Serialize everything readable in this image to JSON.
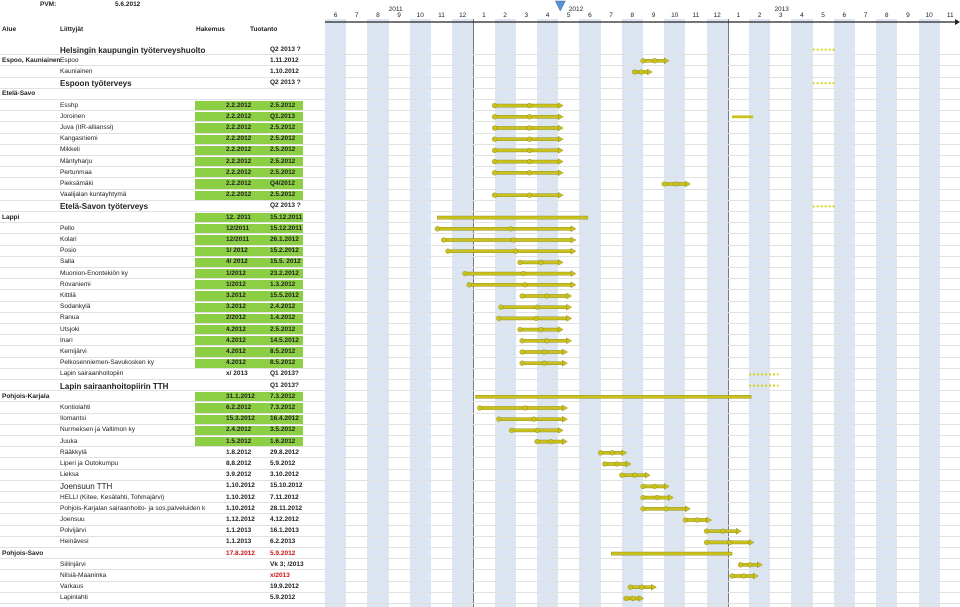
{
  "header": {
    "pvm_label": "PVM:",
    "pvm_value": "5.6.2012",
    "columns": {
      "alue": "Alue",
      "liittyjat": "Liittyjät",
      "hakemus": "Hakemus",
      "tuotanto": "Tuotanto"
    }
  },
  "timeline": {
    "years": [
      "2011",
      "2012",
      "2013"
    ],
    "months": [
      "6",
      "7",
      "8",
      "9",
      "10",
      "11",
      "12",
      "1",
      "2",
      "3",
      "4",
      "5",
      "6",
      "7",
      "8",
      "9",
      "10",
      "11",
      "12",
      "1",
      "2",
      "3",
      "4",
      "5",
      "6",
      "7",
      "8",
      "9",
      "10",
      "11",
      "12"
    ],
    "today_marker": "today-triangle-5.6.2012"
  },
  "colors": {
    "green_cell": "#8ccf44",
    "bar": "#c9c21e",
    "bar_edge": "#8a8416",
    "stripe": "#dce6f3",
    "planned": "#d8d21c",
    "late_red": "#cc1111"
  },
  "rows": [
    {
      "area": "",
      "name": "Helsingin kaupungin työterveyshuolto",
      "hakemus": "",
      "tuotanto": "Q2 2013 ?",
      "name_style": "big",
      "green": false,
      "bar": {
        "type": "dashed",
        "from": 23.0,
        "to": 24.1
      }
    },
    {
      "area": "Espoo, Kauniainen",
      "name": "Espoo",
      "hakemus": "",
      "tuotanto": "1.11.2012",
      "green": false,
      "bar": {
        "type": "solid",
        "from": 15.0,
        "to": 16.0
      }
    },
    {
      "area": "",
      "name": "Kauniainen",
      "hakemus": "",
      "tuotanto": "1.10.2012",
      "green": false,
      "bar": {
        "type": "solid",
        "from": 14.6,
        "to": 15.2
      }
    },
    {
      "area": "",
      "name": "Espoon työterveys",
      "hakemus": "",
      "tuotanto": "Q2 2013 ?",
      "name_style": "big",
      "green": false,
      "bar": {
        "type": "dashed",
        "from": 23.0,
        "to": 24.1
      }
    },
    {
      "area": "Etelä-Savo",
      "name": "",
      "hakemus": "",
      "tuotanto": "",
      "green": false,
      "bar": null
    },
    {
      "area": "",
      "name": "Esshp",
      "hakemus": "2.2.2012",
      "tuotanto": "2.5.2012",
      "green": true,
      "bar": {
        "type": "solid",
        "from": 8.0,
        "to": 11.0
      }
    },
    {
      "area": "",
      "name": "Joroinen",
      "hakemus": "2.2.2012",
      "tuotanto": "Q1.2013",
      "green": true,
      "bar": {
        "type": "solid",
        "from": 8.0,
        "to": 11.0,
        "extra": [
          19.2,
          20.2
        ]
      }
    },
    {
      "area": "",
      "name": "Juva (IIR-allianssi)",
      "hakemus": "2.2.2012",
      "tuotanto": "2.5.2012",
      "green": true,
      "bar": {
        "type": "solid",
        "from": 8.0,
        "to": 11.0
      }
    },
    {
      "area": "",
      "name": "Kangasniemi",
      "hakemus": "2.2.2012",
      "tuotanto": "2.5.2012",
      "green": true,
      "bar": {
        "type": "solid",
        "from": 8.0,
        "to": 11.0
      }
    },
    {
      "area": "",
      "name": "Mikkeli",
      "hakemus": "2.2.2012",
      "tuotanto": "2.5.2012",
      "green": true,
      "bar": {
        "type": "solid",
        "from": 8.0,
        "to": 11.0
      }
    },
    {
      "area": "",
      "name": "Mäntyharju",
      "hakemus": "2.2.2012",
      "tuotanto": "2.5.2012",
      "green": true,
      "bar": {
        "type": "solid",
        "from": 8.0,
        "to": 11.0
      }
    },
    {
      "area": "",
      "name": "Pertunmaa",
      "hakemus": "2.2.2012",
      "tuotanto": "2.5.2012",
      "green": true,
      "bar": {
        "type": "solid",
        "from": 8.0,
        "to": 11.0
      }
    },
    {
      "area": "",
      "name": "Pieksämäki",
      "hakemus": "2.2.2012",
      "tuotanto": "Q4/2012",
      "green": true,
      "bar": {
        "type": "solid",
        "from": 16.0,
        "to": 17.0
      }
    },
    {
      "area": "",
      "name": "Vaalijalan kuntayhtymä",
      "hakemus": "2.2.2012",
      "tuotanto": "2.5.2012",
      "green": true,
      "bar": {
        "type": "solid",
        "from": 8.0,
        "to": 11.0
      }
    },
    {
      "area": "",
      "name": "Etelä-Savon työterveys",
      "hakemus": "",
      "tuotanto": "Q2 2013 ?",
      "name_style": "big",
      "green": false,
      "bar": {
        "type": "dashed",
        "from": 23.0,
        "to": 24.1
      }
    },
    {
      "area": "Lappi",
      "name": "",
      "hakemus": "12. 2011",
      "tuotanto": "15.12.2011",
      "green": true,
      "bar": {
        "type": "plain",
        "from": 5.3,
        "to": 12.4
      }
    },
    {
      "area": "",
      "name": "Pello",
      "hakemus": "12/2011",
      "tuotanto": "15.12.2011",
      "green": true,
      "bar": {
        "type": "solid",
        "from": 5.3,
        "to": 11.6
      }
    },
    {
      "area": "",
      "name": "Kolari",
      "hakemus": "12/2011",
      "tuotanto": "26.1.2012",
      "green": true,
      "bar": {
        "type": "solid",
        "from": 5.6,
        "to": 11.6
      }
    },
    {
      "area": "",
      "name": "Posio",
      "hakemus": "1/ 2012",
      "tuotanto": "15.2.2012",
      "green": true,
      "bar": {
        "type": "solid",
        "from": 5.8,
        "to": 11.6
      }
    },
    {
      "area": "",
      "name": "Salla",
      "hakemus": "4/ 2012",
      "tuotanto": "15.5. 2012",
      "green": true,
      "bar": {
        "type": "solid",
        "from": 9.2,
        "to": 11.0
      }
    },
    {
      "area": "",
      "name": "Muonion-Enontekiön ky",
      "hakemus": "1/2012",
      "tuotanto": "23.2.2012",
      "green": true,
      "bar": {
        "type": "solid",
        "from": 6.6,
        "to": 11.6
      }
    },
    {
      "area": "",
      "name": "Rovaniemi",
      "hakemus": "1/2012",
      "tuotanto": "1.3.2012",
      "green": true,
      "bar": {
        "type": "solid",
        "from": 6.8,
        "to": 11.6
      }
    },
    {
      "area": "",
      "name": "Kittilä",
      "hakemus": "3.2012",
      "tuotanto": "15.5.2012",
      "green": true,
      "bar": {
        "type": "solid",
        "from": 9.3,
        "to": 11.4
      }
    },
    {
      "area": "",
      "name": "Sodankylä",
      "hakemus": "3.2012",
      "tuotanto": "2.4.2012",
      "green": true,
      "bar": {
        "type": "solid",
        "from": 8.3,
        "to": 11.4
      }
    },
    {
      "area": "",
      "name": "Ranua",
      "hakemus": "2/2012",
      "tuotanto": "1.4.2012",
      "green": true,
      "bar": {
        "type": "solid",
        "from": 8.2,
        "to": 11.4
      }
    },
    {
      "area": "",
      "name": "Utsjoki",
      "hakemus": "4.2012",
      "tuotanto": "2.5.2012",
      "green": true,
      "bar": {
        "type": "solid",
        "from": 9.2,
        "to": 11.0
      }
    },
    {
      "area": "",
      "name": "Inari",
      "hakemus": "4.2012",
      "tuotanto": "14.5.2012",
      "green": true,
      "bar": {
        "type": "solid",
        "from": 9.3,
        "to": 11.4
      }
    },
    {
      "area": "",
      "name": "Kemijärvi",
      "hakemus": "4.2012",
      "tuotanto": "8.5.2012",
      "green": true,
      "bar": {
        "type": "solid",
        "from": 9.3,
        "to": 11.2
      }
    },
    {
      "area": "",
      "name": "Pelkosenniemen-Savukosken ky",
      "hakemus": "4.2012",
      "tuotanto": "8.5.2012",
      "green": true,
      "bar": {
        "type": "solid",
        "from": 9.3,
        "to": 11.2
      }
    },
    {
      "area": "",
      "name": "Lapin sairaanhoitopiiri",
      "hakemus": "x/ 2013",
      "tuotanto": "Q1 2013?",
      "green": false,
      "bar": {
        "type": "dashed",
        "from": 20.0,
        "to": 21.4
      }
    },
    {
      "area": "",
      "name": "Lapin sairaanhoitopiirin TTH",
      "hakemus": "",
      "tuotanto": "Q1 2013?",
      "name_style": "big",
      "green": false,
      "bar": {
        "type": "dashed",
        "from": 20.0,
        "to": 21.4
      }
    },
    {
      "area": "Pohjois-Karjala",
      "name": "",
      "hakemus": "31.1.2012",
      "tuotanto": "7.3.2012",
      "green": true,
      "bar": {
        "type": "plain",
        "from": 7.1,
        "to": 20.1
      }
    },
    {
      "area": "",
      "name": "Kontiolahti",
      "hakemus": "6.2.2012",
      "tuotanto": "7.3.2012",
      "green": true,
      "bar": {
        "type": "solid",
        "from": 7.3,
        "to": 11.2
      }
    },
    {
      "area": "",
      "name": "Ilomantsi",
      "hakemus": "15.3.2012",
      "tuotanto": "16.4.2012",
      "green": true,
      "bar": {
        "type": "solid",
        "from": 8.2,
        "to": 11.2
      }
    },
    {
      "area": "",
      "name": "Nurmeksen ja Valtimon ky",
      "hakemus": "2.4.2012",
      "tuotanto": "3.5.2012",
      "green": true,
      "bar": {
        "type": "solid",
        "from": 8.8,
        "to": 11.0
      }
    },
    {
      "area": "",
      "name": "Juuka",
      "hakemus": "1.5.2012",
      "tuotanto": "1.6.2012",
      "green": true,
      "bar": {
        "type": "solid",
        "from": 10.0,
        "to": 11.2
      }
    },
    {
      "area": "",
      "name": "Rääkkylä",
      "hakemus": "1.8.2012",
      "tuotanto": "29.8.2012",
      "green": false,
      "bar": {
        "type": "solid",
        "from": 13.0,
        "to": 14.0
      }
    },
    {
      "area": "",
      "name": "Liperi ja Outokumpu",
      "hakemus": "8.8.2012",
      "tuotanto": "5.9.2012",
      "green": false,
      "bar": {
        "type": "solid",
        "from": 13.2,
        "to": 14.2
      }
    },
    {
      "area": "",
      "name": "Lieksa",
      "hakemus": "3.9.2012",
      "tuotanto": "3.10.2012",
      "green": false,
      "bar": {
        "type": "solid",
        "from": 14.0,
        "to": 15.1
      }
    },
    {
      "area": "",
      "name": "Joensuun TTH",
      "hakemus": "1.10.2012",
      "tuotanto": "15.10.2012",
      "name_style": "mid",
      "green": false,
      "bar": {
        "type": "solid",
        "from": 15.0,
        "to": 16.0
      }
    },
    {
      "area": "",
      "name": "HELLI (Kitee, Kesälahti, Tohmajärvi)",
      "hakemus": "1.10.2012",
      "tuotanto": "7.11.2012",
      "green": false,
      "bar": {
        "type": "solid",
        "from": 15.0,
        "to": 16.2
      }
    },
    {
      "area": "",
      "name": "Pohjois-Karjalan sairaanhoito- ja sos.palveluiden k",
      "hakemus": "1.10.2012",
      "tuotanto": "28.11.2012",
      "green": false,
      "bar": {
        "type": "solid",
        "from": 15.0,
        "to": 17.0
      }
    },
    {
      "area": "",
      "name": "Joensuu",
      "hakemus": "1.12.2012",
      "tuotanto": "4.12.2012",
      "green": false,
      "bar": {
        "type": "solid",
        "from": 17.0,
        "to": 18.0
      }
    },
    {
      "area": "",
      "name": "Polvijärvi",
      "hakemus": "1.1.2013",
      "tuotanto": "16.1.2013",
      "green": false,
      "bar": {
        "type": "solid",
        "from": 18.0,
        "to": 19.4
      }
    },
    {
      "area": "",
      "name": "Heinävesi",
      "hakemus": "1.1.2013",
      "tuotanto": "6.2.2013",
      "green": false,
      "bar": {
        "type": "solid",
        "from": 18.0,
        "to": 20.0
      }
    },
    {
      "area": "Pohjois-Savo",
      "name": "",
      "hakemus": "17.8.2012",
      "tuotanto": "5.9.2012",
      "hakemus_red": true,
      "tuotanto_red": true,
      "green": false,
      "bar": {
        "type": "plain",
        "from": 13.5,
        "to": 19.2
      }
    },
    {
      "area": "",
      "name": "Siilinjärvi",
      "hakemus": "",
      "tuotanto": "Vk 3; /2013",
      "green": false,
      "bar": {
        "type": "solid",
        "from": 19.6,
        "to": 20.4
      }
    },
    {
      "area": "",
      "name": "Nilsiä-Maaninka",
      "hakemus": "",
      "tuotanto": "x/2013",
      "tuotanto_red": true,
      "green": false,
      "bar": {
        "type": "solid",
        "from": 19.2,
        "to": 20.2
      }
    },
    {
      "area": "",
      "name": "Varkaus",
      "hakemus": "",
      "tuotanto": "19.9.2012",
      "green": false,
      "bar": {
        "type": "solid",
        "from": 14.4,
        "to": 15.4
      }
    },
    {
      "area": "",
      "name": "Lapinlahti",
      "hakemus": "",
      "tuotanto": "5.9.2012",
      "green": false,
      "bar": {
        "type": "solid",
        "from": 14.2,
        "to": 14.8
      }
    }
  ]
}
